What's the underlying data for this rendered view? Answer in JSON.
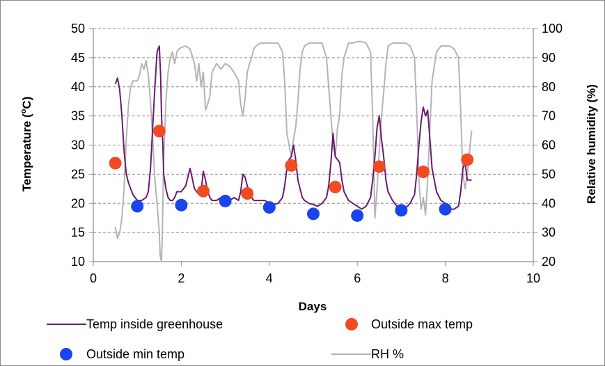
{
  "chart_data": {
    "type": "line",
    "xlabel": "Days",
    "ylabel": "Temperature (oC)",
    "ylabel_parts": [
      "Temperature (",
      "o",
      "C)"
    ],
    "y2label": "Relative humidity (%)",
    "xlim": [
      0,
      10
    ],
    "ylim": [
      10,
      50
    ],
    "y2lim": [
      20,
      100
    ],
    "x_ticks": [
      "0",
      "2",
      "4",
      "6",
      "8",
      "10"
    ],
    "y_ticks": [
      "10",
      "15",
      "20",
      "25",
      "30",
      "35",
      "40",
      "45",
      "50"
    ],
    "y2_ticks": [
      "20",
      "30",
      "40",
      "50",
      "60",
      "70",
      "80",
      "90",
      "100"
    ],
    "grid": true,
    "legend_position": "bottom",
    "colors": {
      "temp_inside": "#6a1a6f",
      "outside_max": "#f24a21",
      "outside_min": "#1a44f0",
      "rh": "#b4b4b4",
      "grid": "#8c8c8c"
    },
    "series": [
      {
        "name": "Temp inside greenhouse",
        "kind": "line",
        "axis": "left",
        "x": [
          0.5,
          0.55,
          0.6,
          0.65,
          0.7,
          0.75,
          0.8,
          0.85,
          0.9,
          0.95,
          1.0,
          1.1,
          1.2,
          1.25,
          1.3,
          1.35,
          1.4,
          1.45,
          1.5,
          1.53,
          1.55,
          1.58,
          1.6,
          1.65,
          1.7,
          1.75,
          1.8,
          1.85,
          1.9,
          2.0,
          2.1,
          2.15,
          2.2,
          2.3,
          2.4,
          2.45,
          2.5,
          2.55,
          2.6,
          2.65,
          2.7,
          2.8,
          2.9,
          3.0,
          3.1,
          3.2,
          3.3,
          3.35,
          3.4,
          3.45,
          3.5,
          3.55,
          3.6,
          3.65,
          3.7,
          3.8,
          3.9,
          4.0,
          4.1,
          4.2,
          4.3,
          4.35,
          4.4,
          4.45,
          4.5,
          4.55,
          4.6,
          4.65,
          4.7,
          4.75,
          4.8,
          4.9,
          5.0,
          5.1,
          5.2,
          5.3,
          5.35,
          5.4,
          5.45,
          5.5,
          5.55,
          5.6,
          5.65,
          5.7,
          5.8,
          5.9,
          6.0,
          6.1,
          6.2,
          6.3,
          6.35,
          6.4,
          6.45,
          6.5,
          6.55,
          6.6,
          6.65,
          6.7,
          6.8,
          6.9,
          7.0,
          7.1,
          7.2,
          7.3,
          7.35,
          7.4,
          7.45,
          7.5,
          7.55,
          7.6,
          7.65,
          7.7,
          7.8,
          7.9,
          8.0,
          8.1,
          8.2,
          8.3,
          8.35,
          8.4,
          8.45,
          8.5,
          8.55,
          8.6
        ],
        "y": [
          40.5,
          41.5,
          39.5,
          35,
          29,
          25,
          23.5,
          22.5,
          21.5,
          21,
          20.5,
          20.5,
          21,
          22,
          26,
          33,
          40,
          46,
          47,
          42,
          35,
          30,
          25,
          22.5,
          21,
          20.5,
          20.5,
          21,
          22,
          22,
          23,
          24.5,
          26,
          22.5,
          21.5,
          22,
          25.5,
          24,
          22,
          21,
          20.5,
          20.5,
          21,
          20.8,
          20.5,
          21,
          20.5,
          22,
          25,
          24.5,
          23,
          21.5,
          21,
          20.5,
          20.5,
          20.5,
          20.5,
          20,
          19.8,
          20,
          21,
          23,
          26,
          27.5,
          28,
          30,
          27.5,
          24,
          22.5,
          21,
          20.5,
          20,
          19.8,
          19.5,
          20,
          21,
          23,
          27,
          32,
          28,
          27.5,
          27,
          24,
          22,
          20.5,
          20,
          19.5,
          19,
          19.5,
          21,
          24,
          28,
          33,
          35,
          31,
          28,
          24,
          22,
          20.5,
          19.5,
          19,
          19.2,
          20,
          21.5,
          25,
          30,
          34,
          36.5,
          35,
          36,
          31,
          26,
          22,
          20.5,
          20,
          19,
          19,
          19.5,
          22,
          26,
          27,
          24,
          24,
          24
        ],
        "unit": "°C"
      },
      {
        "name": "Outside max temp",
        "kind": "scatter",
        "axis": "left",
        "x": [
          0.5,
          1.5,
          2.5,
          3.5,
          4.5,
          5.5,
          6.5,
          7.5,
          8.5
        ],
        "y": [
          26.9,
          32.4,
          22.1,
          21.7,
          26.5,
          22.8,
          26.3,
          25.4,
          27.5
        ]
      },
      {
        "name": "Outside min temp",
        "kind": "scatter",
        "axis": "left",
        "x": [
          1,
          2,
          3,
          4,
          5,
          6,
          7,
          8
        ],
        "y": [
          19.5,
          19.7,
          20.4,
          19.3,
          18.2,
          17.9,
          18.8,
          19.0
        ]
      },
      {
        "name": "RH %",
        "kind": "line",
        "axis": "right",
        "x": [
          0.5,
          0.55,
          0.6,
          0.65,
          0.7,
          0.75,
          0.8,
          0.85,
          0.9,
          1.0,
          1.05,
          1.1,
          1.15,
          1.2,
          1.25,
          1.3,
          1.35,
          1.4,
          1.45,
          1.5,
          1.52,
          1.55,
          1.57,
          1.6,
          1.65,
          1.7,
          1.75,
          1.8,
          1.85,
          1.9,
          1.95,
          2.0,
          2.1,
          2.2,
          2.3,
          2.35,
          2.4,
          2.45,
          2.5,
          2.55,
          2.6,
          2.65,
          2.7,
          2.8,
          2.9,
          3.0,
          3.1,
          3.2,
          3.3,
          3.35,
          3.4,
          3.45,
          3.5,
          3.55,
          3.6,
          3.65,
          3.7,
          3.8,
          3.9,
          4.0,
          4.1,
          4.2,
          4.3,
          4.35,
          4.4,
          4.45,
          4.5,
          4.55,
          4.6,
          4.65,
          4.7,
          4.75,
          4.8,
          4.9,
          5.0,
          5.1,
          5.2,
          5.3,
          5.35,
          5.4,
          5.45,
          5.5,
          5.55,
          5.6,
          5.65,
          5.7,
          5.8,
          5.9,
          6.0,
          6.1,
          6.2,
          6.3,
          6.35,
          6.4,
          6.45,
          6.5,
          6.55,
          6.6,
          6.65,
          6.7,
          6.8,
          6.9,
          7.0,
          7.1,
          7.2,
          7.3,
          7.35,
          7.4,
          7.45,
          7.5,
          7.55,
          7.6,
          7.65,
          7.7,
          7.8,
          7.9,
          8.0,
          8.1,
          8.2,
          8.3,
          8.35,
          8.4,
          8.45,
          8.5,
          8.55,
          8.6
        ],
        "y": [
          32,
          28,
          30,
          35,
          45,
          62,
          74,
          80,
          82,
          82,
          84,
          88,
          86,
          89,
          84,
          75,
          62,
          48,
          40,
          30,
          22,
          20,
          30,
          55,
          75,
          85,
          90,
          92,
          88,
          92,
          93,
          93.5,
          94,
          93,
          88,
          82,
          88,
          80,
          85,
          72,
          74,
          77,
          85,
          88,
          86,
          88,
          87,
          85,
          82,
          74,
          70,
          76,
          85,
          88,
          90,
          93,
          94,
          95,
          95,
          95,
          95,
          95,
          92,
          82,
          64,
          60,
          56,
          62,
          66,
          75,
          86,
          92,
          94,
          95,
          95,
          95,
          95,
          90,
          80,
          70,
          60,
          56,
          66,
          70,
          84,
          90,
          95,
          95,
          95.5,
          95.5,
          95,
          92,
          70,
          35,
          45,
          58,
          70,
          78,
          88,
          94,
          95,
          95,
          95,
          95,
          94,
          90,
          72,
          48,
          38,
          42,
          36,
          48,
          66,
          82,
          92,
          94,
          94,
          94,
          93,
          90,
          72,
          50,
          45,
          50,
          58,
          65
        ]
      }
    ]
  }
}
